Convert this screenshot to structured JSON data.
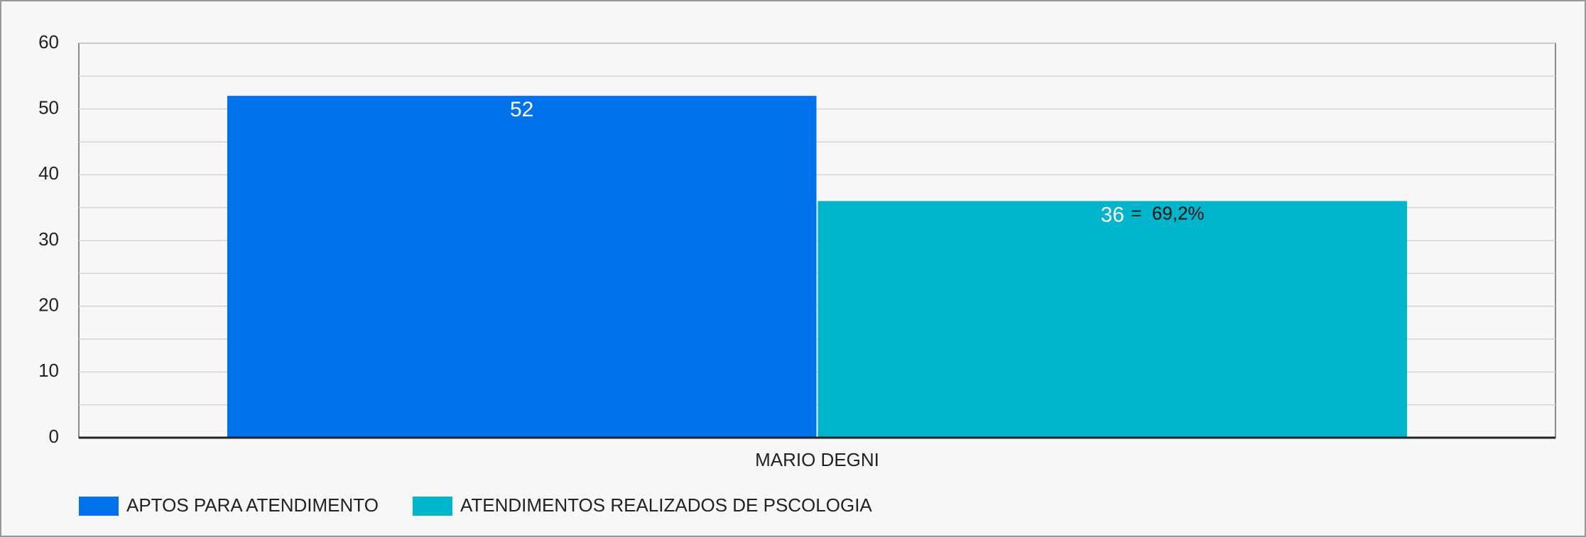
{
  "chart_data": {
    "type": "bar",
    "categories": [
      "MARIO DEGNI"
    ],
    "series": [
      {
        "name": "APTOS PARA ATENDIMENTO",
        "color": "#0073ea",
        "values": [
          52
        ]
      },
      {
        "name": "ATENDIMENTOS REALIZADOS DE PSCOLOGIA",
        "color": "#00b5cc",
        "values": [
          36
        ]
      }
    ],
    "annotation": "=  69,2%",
    "ylim": [
      0,
      60
    ],
    "yticks": [
      0,
      10,
      20,
      30,
      40,
      50,
      60
    ],
    "minor_yticks": [
      5,
      15,
      25,
      35,
      45,
      55
    ],
    "grid": true,
    "legend": "bottom-left"
  }
}
